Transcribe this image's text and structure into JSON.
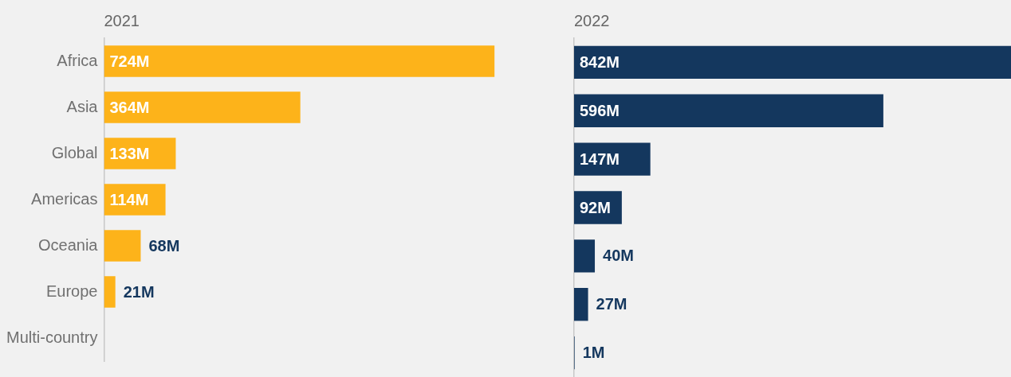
{
  "chart_data": [
    {
      "type": "bar",
      "orientation": "horizontal",
      "title": "2021",
      "tick_labels": "y",
      "categories": [
        "Africa",
        "Asia",
        "Global",
        "Americas",
        "Oceania",
        "Europe",
        "Multi-country"
      ],
      "color": "#fdb31a",
      "values": [
        724,
        364,
        133,
        114,
        68,
        21,
        null
      ],
      "value_labels": [
        "724M",
        "364M",
        "133M",
        "114M",
        "68M",
        "21M",
        null
      ]
    },
    {
      "type": "bar",
      "orientation": "horizontal",
      "title": "2022",
      "tick_labels": false,
      "categories": [
        null,
        null,
        null,
        null,
        null,
        null,
        null
      ],
      "color": "#14375e",
      "values": [
        842,
        596,
        147,
        92,
        40,
        27,
        1
      ],
      "value_labels": [
        "842M",
        "596M",
        "147M",
        "92M",
        "40M",
        "27M",
        "1M"
      ]
    }
  ]
}
